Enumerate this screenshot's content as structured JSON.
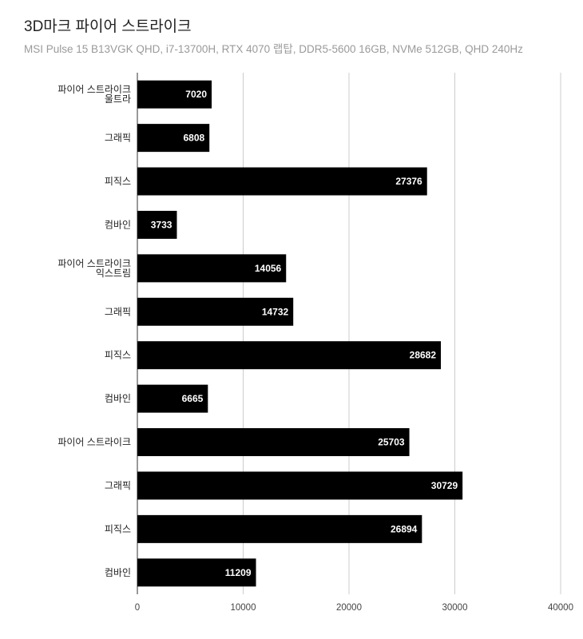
{
  "chart_data": {
    "type": "bar",
    "orientation": "horizontal",
    "title": "3D마크 파이어 스트라이크",
    "subtitle": "MSI Pulse 15 B13VGK QHD, i7-13700H, RTX 4070 랩탑, DDR5-5600 16GB, NVMe 512GB, QHD 240Hz",
    "categories": [
      [
        "파이어 스트라이크",
        "울트라"
      ],
      [
        "그래픽"
      ],
      [
        "피직스"
      ],
      [
        "컴바인"
      ],
      [
        "파이어 스트라이크",
        "익스트림"
      ],
      [
        "그래픽"
      ],
      [
        "피직스"
      ],
      [
        "컴바인"
      ],
      [
        "파이어 스트라이크"
      ],
      [
        "그래픽"
      ],
      [
        "피직스"
      ],
      [
        "컴바인"
      ]
    ],
    "values": [
      7020,
      6808,
      27376,
      3733,
      14056,
      14732,
      28682,
      6665,
      25703,
      30729,
      26894,
      11209
    ],
    "xlim": [
      0,
      40000
    ],
    "xticks": [
      0,
      10000,
      20000,
      30000,
      40000
    ],
    "bar_color": "#000000",
    "data_label_color": "#ffffff",
    "grid": true,
    "legend": "none"
  }
}
